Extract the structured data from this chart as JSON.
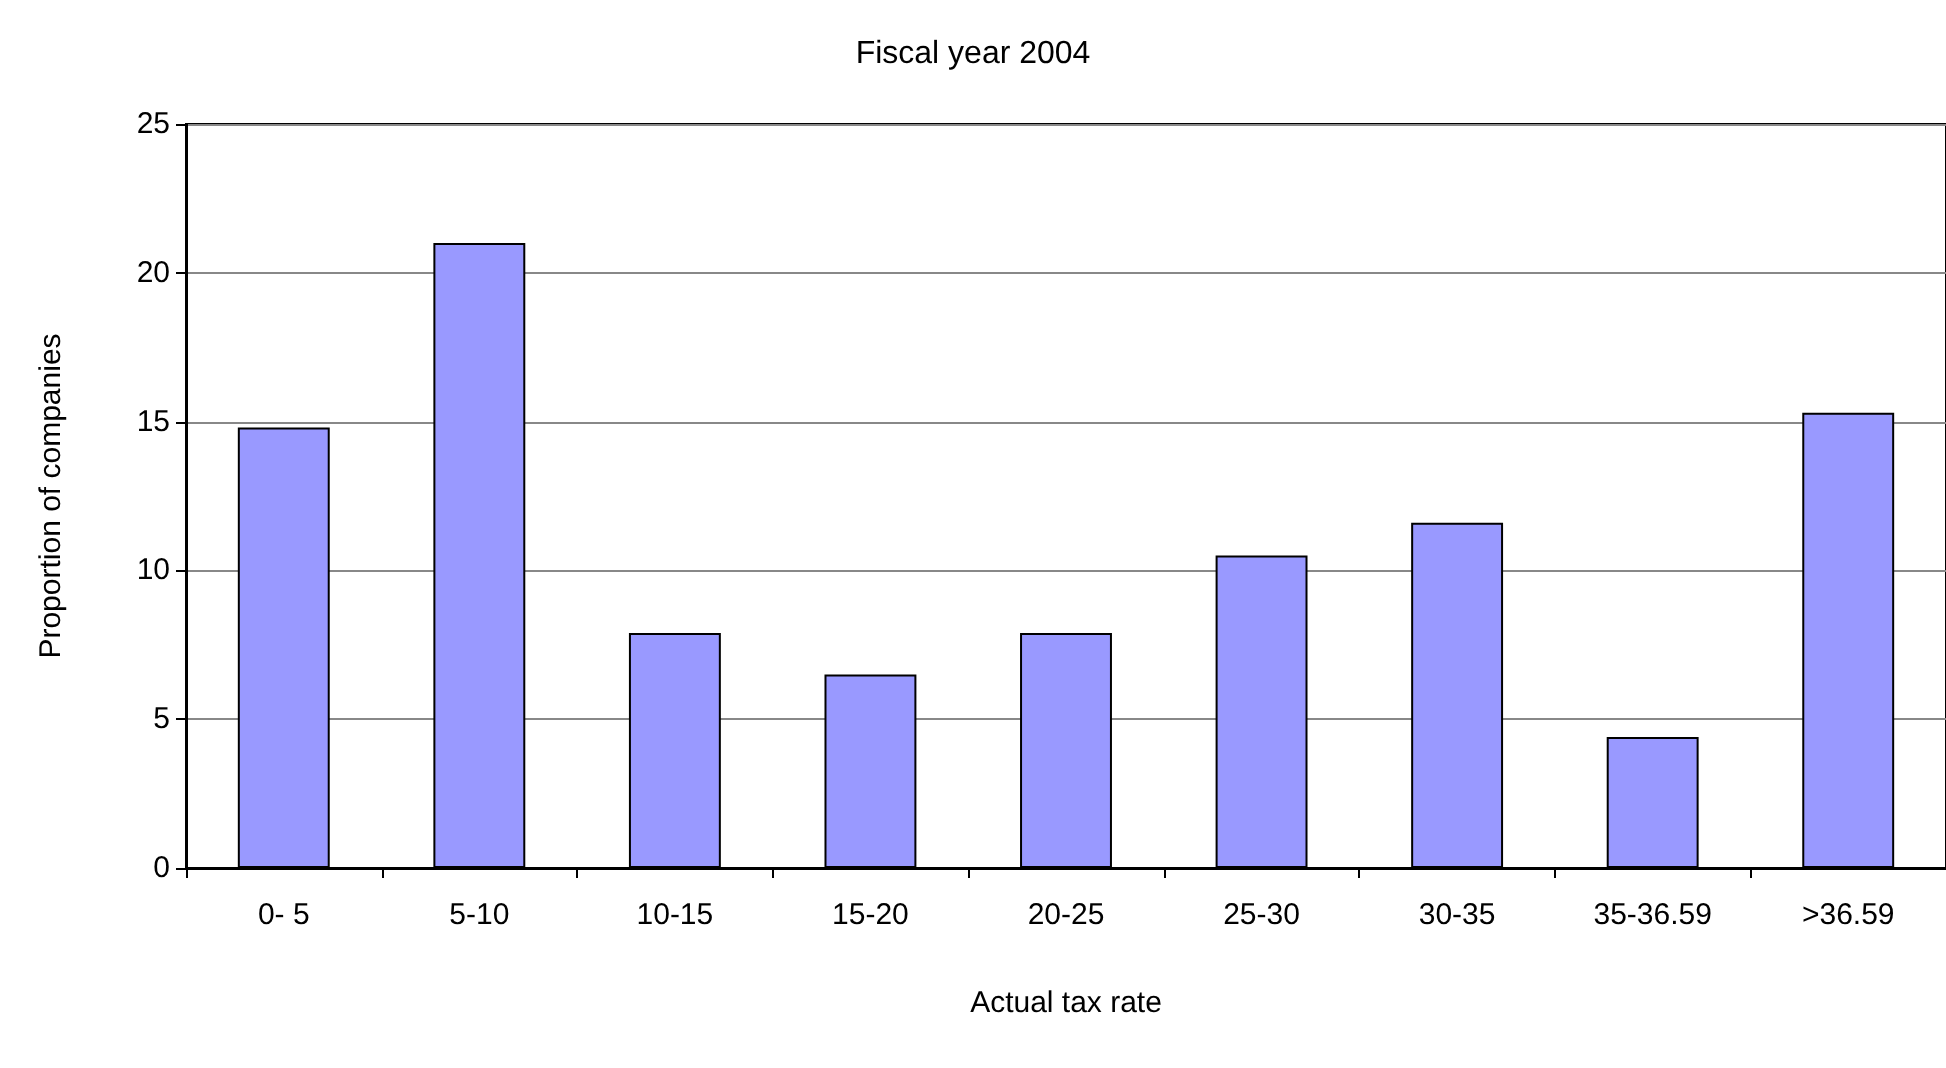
{
  "chart_data": {
    "type": "bar",
    "title": "Fiscal year 2004",
    "xlabel": "Actual tax rate",
    "ylabel": "Proportion of companies",
    "categories": [
      "0- 5",
      "5-10",
      "10-15",
      "15-20",
      "20-25",
      "25-30",
      "30-35",
      "35-36.59",
      ">36.59"
    ],
    "values": [
      14.8,
      21.0,
      7.9,
      6.5,
      7.9,
      10.5,
      11.6,
      4.4,
      15.3
    ],
    "color": "#9999ff",
    "ylim": [
      0,
      25
    ],
    "yticks": [
      0,
      5,
      10,
      15,
      20,
      25
    ],
    "grid": "y"
  }
}
